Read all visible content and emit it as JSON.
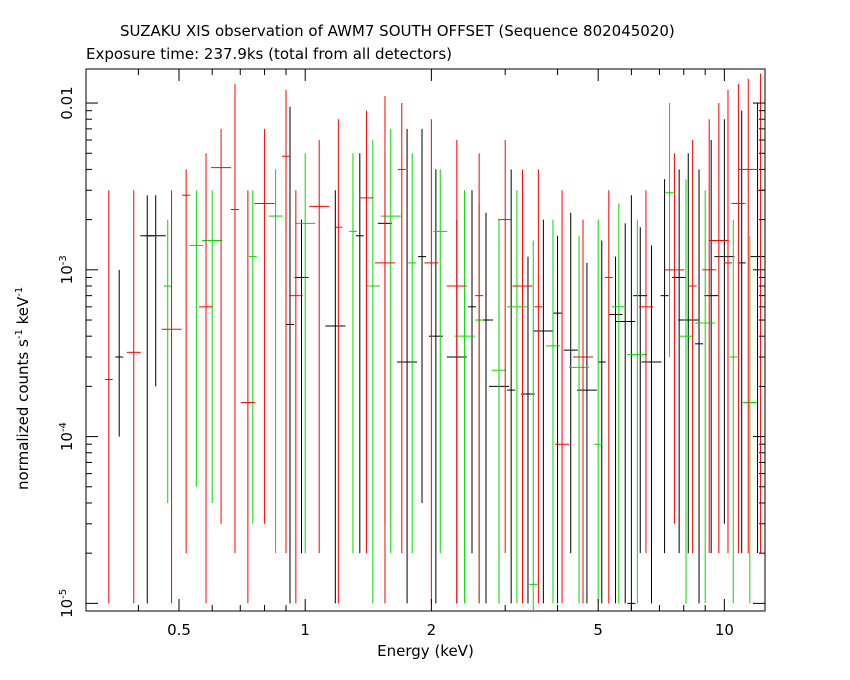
{
  "chart_data": {
    "type": "scatter",
    "title": "SUZAKU XIS observation of AWM7 SOUTH OFFSET (Sequence 802045020)",
    "subtitle": "Exposure time: 237.9ks (total from all detectors)",
    "xlabel": "Energy (keV)",
    "ylabel": {
      "main": "normalized counts s",
      "exp1": "-1",
      "mid": " keV",
      "exp2": "-1"
    },
    "xscale": "log",
    "yscale": "log",
    "xlim": [
      0.3,
      12.5
    ],
    "ylim": [
      9e-06,
      0.016
    ],
    "x_ticks": [
      {
        "value": 0.5,
        "label": "0.5"
      },
      {
        "value": 1,
        "label": "1"
      },
      {
        "value": 2,
        "label": "2"
      },
      {
        "value": 5,
        "label": "5"
      },
      {
        "value": 10,
        "label": "10"
      }
    ],
    "y_ticks": [
      {
        "value": 1e-05,
        "base": "10",
        "exp": "-5"
      },
      {
        "value": 0.0001,
        "base": "10",
        "exp": "-4"
      },
      {
        "value": 0.001,
        "base": "10",
        "exp": "-3"
      },
      {
        "value": 0.01,
        "base": "0.01",
        "exp": ""
      }
    ],
    "grid": false,
    "legend": "none",
    "series": [
      {
        "color": "#000000",
        "points": [
          [
            0.36,
            0.0003,
            0.0001,
            0.001
          ],
          [
            0.42,
            0.0016,
            1e-05,
            0.0028
          ],
          [
            0.44,
            0.0016,
            0.0002,
            0.0028
          ],
          [
            0.92,
            0.00047,
            1e-05,
            0.0095
          ],
          [
            0.98,
            0.0009,
            2e-05,
            0.002
          ],
          [
            1.18,
            0.00046,
            1e-05,
            0.003
          ],
          [
            1.35,
            0.0016,
            2e-05,
            0.005
          ],
          [
            1.55,
            0.0019,
            3e-05,
            0.005
          ],
          [
            1.75,
            0.00028,
            1e-05,
            0.007
          ],
          [
            1.9,
            0.0012,
            4e-05,
            0.007
          ],
          [
            2.05,
            0.0004,
            1e-05,
            0.004
          ],
          [
            2.3,
            0.0003,
            1e-05,
            0.002
          ],
          [
            2.5,
            0.0006,
            2e-05,
            0.003
          ],
          [
            2.7,
            0.0005,
            1e-05,
            0.0022
          ],
          [
            2.9,
            0.0002,
            1e-05,
            0.0015
          ],
          [
            3.1,
            0.00019,
            1e-05,
            0.004
          ],
          [
            3.4,
            0.00018,
            1e-05,
            0.0012
          ],
          [
            3.7,
            0.00043,
            1e-05,
            0.002
          ],
          [
            4.0,
            0.00055,
            1e-05,
            0.0016
          ],
          [
            4.3,
            0.00033,
            2e-05,
            0.0022
          ],
          [
            4.7,
            0.00019,
            1e-05,
            0.0011
          ],
          [
            5.1,
            0.00028,
            1e-05,
            0.0015
          ],
          [
            5.5,
            0.00054,
            1e-05,
            0.0012
          ],
          [
            5.8,
            0.00049,
            1e-05,
            0.0019
          ],
          [
            6.0,
            1e-05,
            9e-06,
            0.0028
          ],
          [
            6.3,
            0.0007,
            2e-05,
            0.0018
          ],
          [
            6.7,
            0.00028,
            1e-05,
            0.0014
          ],
          [
            7.2,
            0.0007,
            2e-05,
            0.0035
          ],
          [
            7.8,
            0.0009,
            2e-05,
            0.004
          ],
          [
            8.2,
            0.0005,
            2e-05,
            0.005
          ],
          [
            8.7,
            0.00036,
            1e-05,
            0.004
          ],
          [
            9.3,
            0.0007,
            2e-05,
            0.006
          ],
          [
            10.0,
            0.0012,
            3e-05,
            0.008
          ],
          [
            11.0,
            0.0011,
            2e-05,
            0.009
          ],
          [
            12.0,
            0.0012,
            2e-05,
            0.01
          ]
        ]
      },
      {
        "color": "#00dd00",
        "points": [
          [
            0.47,
            0.0008,
            4e-05,
            0.002
          ],
          [
            0.55,
            0.0014,
            5e-05,
            0.003
          ],
          [
            0.6,
            0.0015,
            4e-05,
            0.003
          ],
          [
            0.75,
            0.0012,
            3e-05,
            0.003
          ],
          [
            0.85,
            0.0021,
            2e-05,
            0.004
          ],
          [
            1.0,
            0.0019,
            2e-05,
            0.005
          ],
          [
            1.3,
            0.0017,
            2e-05,
            0.005
          ],
          [
            1.45,
            0.0008,
            1e-05,
            0.006
          ],
          [
            1.6,
            0.0021,
            2e-05,
            0.007
          ],
          [
            1.8,
            0.0011,
            2e-05,
            0.005
          ],
          [
            2.1,
            0.0017,
            2e-05,
            0.004
          ],
          [
            2.4,
            0.0004,
            1e-05,
            0.003
          ],
          [
            2.6,
            0.0005,
            1e-05,
            0.0025
          ],
          [
            2.9,
            0.00025,
            1e-05,
            0.002
          ],
          [
            3.2,
            0.0006,
            1e-05,
            0.003
          ],
          [
            3.5,
            1.3e-05,
            9e-06,
            0.0015
          ],
          [
            3.9,
            0.00035,
            1e-05,
            0.002
          ],
          [
            4.5,
            0.00026,
            1e-05,
            0.0016
          ],
          [
            5.0,
            9e-05,
            1e-05,
            0.002
          ],
          [
            5.6,
            0.0006,
            1e-05,
            0.0025
          ],
          [
            6.2,
            0.00031,
            1e-05,
            0.002
          ],
          [
            7.4,
            0.0029,
            0.0003,
            0.01
          ],
          [
            8.1,
            0.0004,
            1e-05,
            0.0035
          ],
          [
            9.0,
            0.00048,
            1e-05,
            0.003
          ],
          [
            10.5,
            0.0003,
            1e-05,
            0.002
          ],
          [
            11.5,
            0.00016,
            1e-05,
            0.0016
          ]
        ]
      },
      {
        "color": "#ff0000",
        "points": [
          [
            0.34,
            0.00022,
            1e-05,
            0.003
          ],
          [
            0.39,
            0.00032,
            1e-05,
            0.003
          ],
          [
            0.48,
            0.00044,
            1e-05,
            0.003
          ],
          [
            0.52,
            0.0028,
            2e-05,
            0.004
          ],
          [
            0.58,
            0.0006,
            1e-05,
            0.005
          ],
          [
            0.63,
            0.0041,
            3e-05,
            0.007
          ],
          [
            0.68,
            0.0023,
            2e-05,
            0.013
          ],
          [
            0.73,
            0.00016,
            1e-05,
            0.003
          ],
          [
            0.8,
            0.0025,
            3e-05,
            0.007
          ],
          [
            0.9,
            0.0048,
            2e-05,
            0.012
          ],
          [
            0.95,
            0.0007,
            1e-05,
            0.003
          ],
          [
            1.08,
            0.0024,
            2e-05,
            0.006
          ],
          [
            1.2,
            0.0018,
            1e-05,
            0.008
          ],
          [
            1.4,
            0.0027,
            2e-05,
            0.009
          ],
          [
            1.55,
            0.0011,
            1e-05,
            0.011
          ],
          [
            1.7,
            0.004,
            2e-05,
            0.01
          ],
          [
            2.0,
            0.0011,
            1e-05,
            0.008
          ],
          [
            2.3,
            0.0008,
            1e-05,
            0.006
          ],
          [
            2.6,
            0.0007,
            1e-05,
            0.005
          ],
          [
            3.0,
            0.002,
            2e-05,
            0.006
          ],
          [
            3.3,
            0.0008,
            1e-05,
            0.004
          ],
          [
            3.6,
            0.0006,
            1e-05,
            0.004
          ],
          [
            4.1,
            9e-05,
            1e-05,
            0.003
          ],
          [
            4.6,
            0.0003,
            1e-05,
            0.002
          ],
          [
            5.3,
            0.0009,
            1e-05,
            0.003
          ],
          [
            6.5,
            0.0006,
            2e-05,
            0.003
          ],
          [
            7.6,
            0.001,
            3e-05,
            0.005
          ],
          [
            8.4,
            0.0008,
            2e-05,
            0.006
          ],
          [
            9.2,
            0.001,
            2e-05,
            0.008
          ],
          [
            9.7,
            0.0015,
            2e-05,
            0.01
          ],
          [
            10.2,
            0.0011,
            2e-05,
            0.012
          ],
          [
            10.8,
            0.0025,
            2e-05,
            0.013
          ],
          [
            11.4,
            0.004,
            2e-05,
            0.014
          ],
          [
            12.2,
            0.003,
            2e-05,
            0.015
          ]
        ]
      }
    ]
  }
}
